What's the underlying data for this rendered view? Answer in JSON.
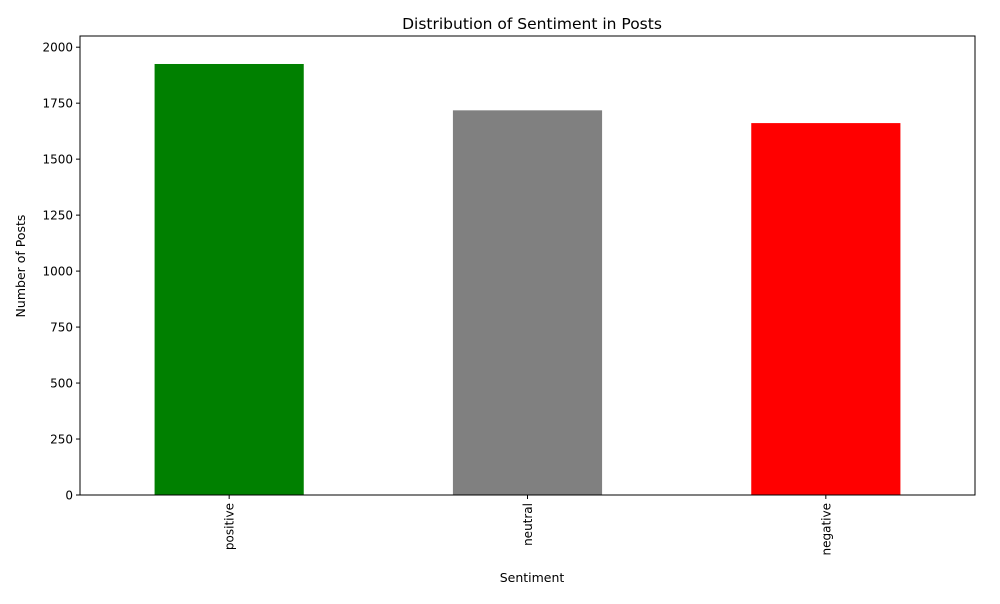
{
  "chart_data": {
    "type": "bar",
    "title": "Distribution of Sentiment in Posts",
    "xlabel": "Sentiment",
    "ylabel": "Number of Posts",
    "categories": [
      "positive",
      "neutral",
      "negative"
    ],
    "values": [
      1925,
      1718,
      1661
    ],
    "colors": [
      "#008000",
      "#808080",
      "#ff0000"
    ],
    "ylim": [
      0,
      2050
    ],
    "yticks": [
      0,
      250,
      500,
      750,
      1000,
      1250,
      1500,
      1750,
      2000
    ],
    "grid": false,
    "legend": "none",
    "xtick_rotation": "vertical"
  }
}
